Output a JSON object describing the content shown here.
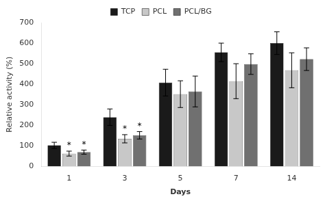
{
  "chart_data": {
    "type": "bar",
    "categories": [
      "1",
      "3",
      "5",
      "7",
      "14"
    ],
    "series": [
      {
        "name": "TCP",
        "color": "#1a1a1a",
        "values": [
          103,
          240,
          408,
          555,
          600
        ],
        "errors": [
          15,
          40,
          65,
          45,
          55
        ]
      },
      {
        "name": "PCL",
        "color": "#c8c8c8",
        "values": [
          63,
          135,
          352,
          415,
          468
        ],
        "errors": [
          12,
          20,
          65,
          85,
          85
        ]
      },
      {
        "name": "PCL/BG",
        "color": "#707070",
        "values": [
          70,
          152,
          365,
          498,
          522
        ],
        "errors": [
          10,
          18,
          75,
          50,
          55
        ]
      }
    ],
    "xlabel": "Days",
    "ylabel": "Relative activity (%)",
    "ylim": [
      0,
      700
    ],
    "yticks": [
      0,
      100,
      200,
      300,
      400,
      500,
      600,
      700
    ],
    "grid": false,
    "legend": "top",
    "annotations": [
      {
        "text": "*",
        "series": "PCL",
        "category": "1"
      },
      {
        "text": "*",
        "series": "PCL/BG",
        "category": "1"
      },
      {
        "text": "*",
        "series": "PCL",
        "category": "3"
      },
      {
        "text": "*",
        "series": "PCL/BG",
        "category": "3"
      }
    ]
  }
}
